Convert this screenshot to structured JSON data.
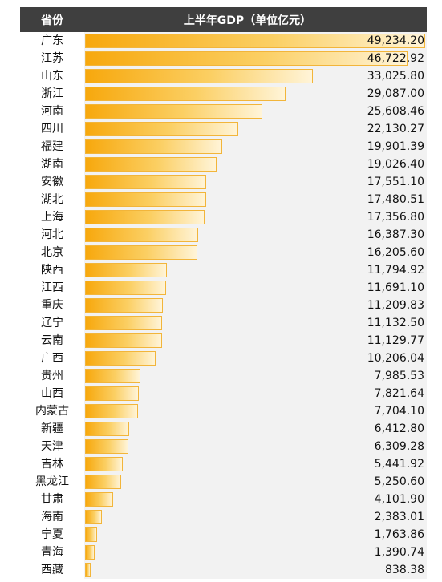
{
  "header": {
    "col1": "省份",
    "col2": "上半年GDP（单位亿元）"
  },
  "chart_data": {
    "type": "bar",
    "orientation": "horizontal",
    "categories": [
      "广东",
      "江苏",
      "山东",
      "浙江",
      "河南",
      "四川",
      "福建",
      "湖南",
      "安徽",
      "湖北",
      "上海",
      "河北",
      "北京",
      "陕西",
      "江西",
      "重庆",
      "辽宁",
      "云南",
      "广西",
      "贵州",
      "山西",
      "内蒙古",
      "新疆",
      "天津",
      "吉林",
      "黑龙江",
      "甘肃",
      "海南",
      "宁夏",
      "青海",
      "西藏"
    ],
    "values": [
      49234.2,
      46722.92,
      33025.8,
      29087.0,
      25608.46,
      22130.27,
      19901.39,
      19026.4,
      17551.1,
      17480.51,
      17356.8,
      16387.3,
      16205.6,
      11794.92,
      11691.1,
      11209.83,
      11132.5,
      11129.77,
      10206.04,
      7985.53,
      7821.64,
      7704.1,
      6412.8,
      6309.28,
      5441.92,
      5250.6,
      4101.9,
      2383.01,
      1763.86,
      1390.74,
      838.38
    ],
    "labels": [
      "49,234.20",
      "46,722.92",
      "33,025.80",
      "29,087.00",
      "25,608.46",
      "22,130.27",
      "19,901.39",
      "19,026.40",
      "17,551.10",
      "17,480.51",
      "17,356.80",
      "16,387.30",
      "16,205.60",
      "11,794.92",
      "11,691.10",
      "11,209.83",
      "11,132.50",
      "11,129.77",
      "10,206.04",
      "7,985.53",
      "7,821.64",
      "7,704.10",
      "6,412.80",
      "6,309.28",
      "5,441.92",
      "5,250.60",
      "4,101.90",
      "2,383.01",
      "1,763.86",
      "1,390.74",
      "838.38"
    ],
    "xlim": [
      0,
      49234.2
    ],
    "colors": {
      "bar_start": "#f7a80d",
      "bar_end": "#fff4d8",
      "header_bg": "#3f3f3f",
      "area_bg": "#f2f2f2"
    }
  }
}
